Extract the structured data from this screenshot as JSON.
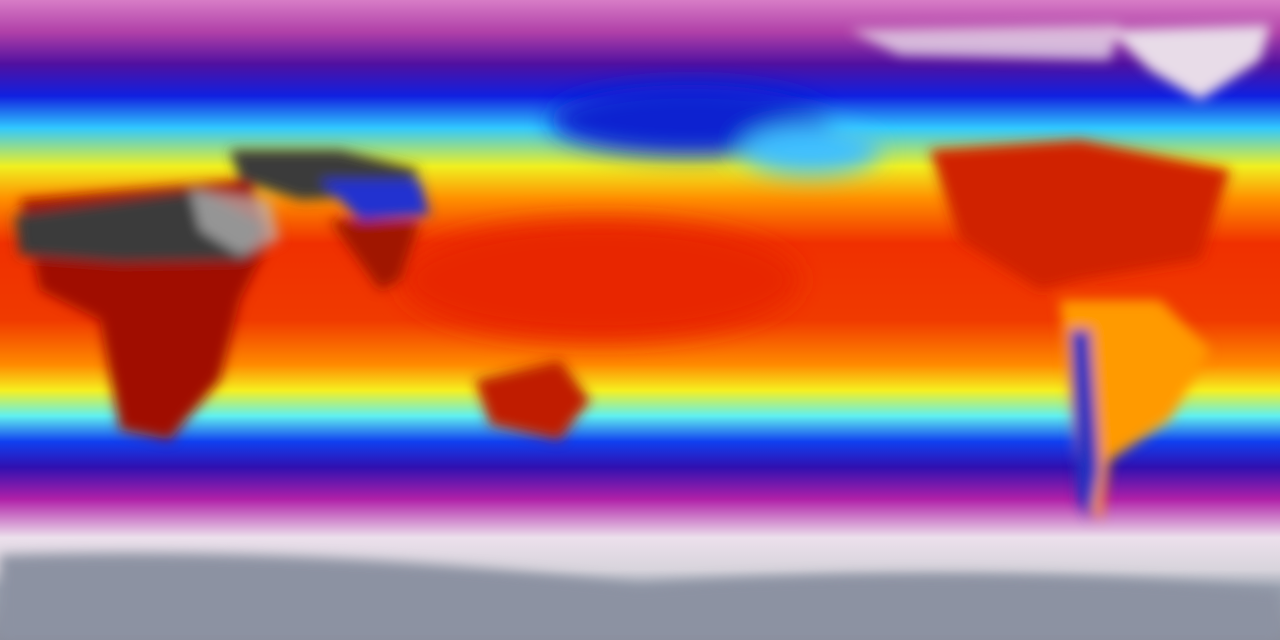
{
  "map": {
    "projection": "equirectangular",
    "colormap_stops": [
      {
        "lat_fraction": 0.0,
        "color": "#d77cc6"
      },
      {
        "lat_fraction": 0.05,
        "color": "#b040a8"
      },
      {
        "lat_fraction": 0.1,
        "color": "#5010a0"
      },
      {
        "lat_fraction": 0.15,
        "color": "#1020e0"
      },
      {
        "lat_fraction": 0.2,
        "color": "#30c8ff"
      },
      {
        "lat_fraction": 0.26,
        "color": "#f0f020"
      },
      {
        "lat_fraction": 0.31,
        "color": "#ff9000"
      },
      {
        "lat_fraction": 0.38,
        "color": "#f03000"
      },
      {
        "lat_fraction": 0.5,
        "color": "#f03a00"
      },
      {
        "lat_fraction": 0.57,
        "color": "#ff8a00"
      },
      {
        "lat_fraction": 0.61,
        "color": "#f6f020"
      },
      {
        "lat_fraction": 0.65,
        "color": "#60f0f0"
      },
      {
        "lat_fraction": 0.69,
        "color": "#1040f0"
      },
      {
        "lat_fraction": 0.73,
        "color": "#3010b0"
      },
      {
        "lat_fraction": 0.78,
        "color": "#b020a8"
      },
      {
        "lat_fraction": 0.84,
        "color": "#ece0ec"
      },
      {
        "lat_fraction": 0.89,
        "color": "#d8d4dc"
      },
      {
        "lat_fraction": 0.92,
        "color": "#9aa2b0"
      },
      {
        "lat_fraction": 1.0,
        "color": "#8a8e9c"
      }
    ],
    "colors": {
      "hot_desert": "#3a3a3a",
      "hot_land": "#a00a00",
      "ice": "#e8dce8",
      "cold_plateau": "#2030d0"
    }
  }
}
